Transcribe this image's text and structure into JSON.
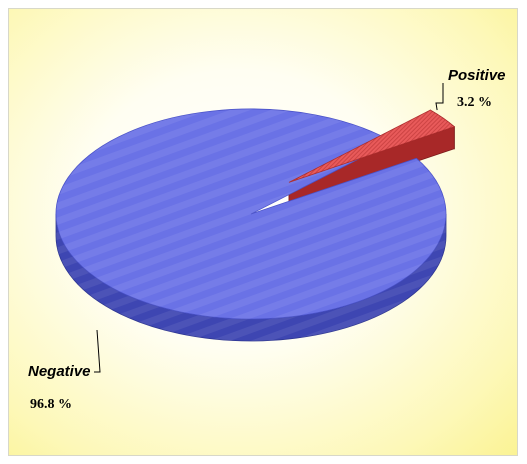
{
  "colors": {
    "negative_top": "#6a72e6",
    "negative_side": "#3e46b2",
    "positive_top": "#e85a5a",
    "positive_side": "#a82828",
    "leader_line": "#000000"
  },
  "chart_data": {
    "type": "pie",
    "three_d": true,
    "legend": "none",
    "slices": [
      {
        "label": "Negative",
        "value": 96.8,
        "value_label": "96.8 %",
        "exploded": false
      },
      {
        "label": "Positive",
        "value": 3.2,
        "value_label": "3.2 %",
        "exploded": true
      }
    ]
  }
}
